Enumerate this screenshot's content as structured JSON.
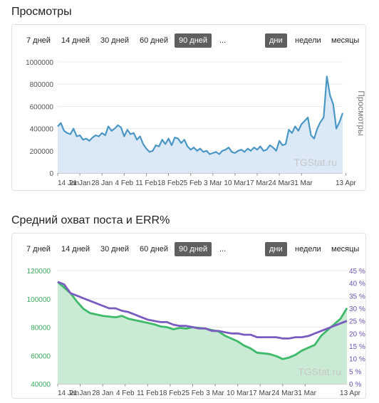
{
  "sections": [
    {
      "title": "Просмотры",
      "ranges": [
        "7 дней",
        "14 дней",
        "30 дней",
        "60 дней",
        "90 дней",
        "..."
      ],
      "active_range": 4,
      "granularity": [
        "дни",
        "недели",
        "месяцы"
      ],
      "active_granularity": 0
    },
    {
      "title": "Средний охват поста и ERR%",
      "ranges": [
        "7 дней",
        "14 дней",
        "30 дней",
        "60 дней",
        "90 дней",
        "..."
      ],
      "active_range": 4,
      "granularity": [
        "дни",
        "недели",
        "месяцы"
      ],
      "active_granularity": 0
    }
  ],
  "colors": {
    "views_line": "#4b97c4",
    "views_fill": "#dbe9f7",
    "reach_line": "#3fb96a",
    "reach_fill": "#c9ead3",
    "err_line": "#7a5cc0",
    "left_axis": "#38a85b",
    "right_axis": "#6b53b5",
    "grid": "#e8e8e8",
    "watermark": "#c8c8c8"
  },
  "chart_data": [
    {
      "type": "area",
      "watermark": "TGStat.ru",
      "ylabel": "Просмотры",
      "ylim": [
        0,
        1000000
      ],
      "yticks": [
        0,
        200000,
        400000,
        600000,
        800000,
        1000000
      ],
      "ytick_labels": [
        "0",
        "200000",
        "400000",
        "600000",
        "800000",
        "1000000"
      ],
      "xlim": [
        0,
        90
      ],
      "xticks": [
        0,
        7,
        14,
        21,
        28,
        35,
        42,
        49,
        56,
        63,
        70,
        77,
        91
      ],
      "xtick_labels": [
        "14 Jan",
        "21 Jan",
        "28 Jan",
        "4 Feb",
        "11 Feb",
        "18 Feb",
        "25 Feb",
        "3 Mar",
        "10 Mar",
        "17 Mar",
        "24 Mar",
        "31 Mar",
        "13 Apr"
      ],
      "grid": true,
      "series": [
        {
          "values": [
            [
              0,
              420000
            ],
            [
              1,
              450000
            ],
            [
              2,
              380000
            ],
            [
              3,
              360000
            ],
            [
              4,
              350000
            ],
            [
              5,
              400000
            ],
            [
              6,
              330000
            ],
            [
              7,
              340000
            ],
            [
              8,
              300000
            ],
            [
              9,
              310000
            ],
            [
              10,
              290000
            ],
            [
              11,
              320000
            ],
            [
              12,
              340000
            ],
            [
              13,
              330000
            ],
            [
              14,
              360000
            ],
            [
              15,
              340000
            ],
            [
              16,
              420000
            ],
            [
              17,
              380000
            ],
            [
              18,
              400000
            ],
            [
              19,
              430000
            ],
            [
              20,
              410000
            ],
            [
              21,
              330000
            ],
            [
              22,
              390000
            ],
            [
              23,
              350000
            ],
            [
              24,
              360000
            ],
            [
              25,
              300000
            ],
            [
              26,
              330000
            ],
            [
              27,
              260000
            ],
            [
              28,
              220000
            ],
            [
              29,
              190000
            ],
            [
              30,
              200000
            ],
            [
              31,
              250000
            ],
            [
              32,
              240000
            ],
            [
              33,
              300000
            ],
            [
              34,
              260000
            ],
            [
              35,
              310000
            ],
            [
              36,
              250000
            ],
            [
              37,
              320000
            ],
            [
              38,
              310000
            ],
            [
              39,
              270000
            ],
            [
              40,
              300000
            ],
            [
              41,
              240000
            ],
            [
              42,
              210000
            ],
            [
              43,
              230000
            ],
            [
              44,
              200000
            ],
            [
              45,
              220000
            ],
            [
              46,
              190000
            ],
            [
              47,
              200000
            ],
            [
              48,
              170000
            ],
            [
              49,
              180000
            ],
            [
              50,
              190000
            ],
            [
              51,
              170000
            ],
            [
              52,
              200000
            ],
            [
              53,
              210000
            ],
            [
              54,
              230000
            ],
            [
              55,
              190000
            ],
            [
              56,
              180000
            ],
            [
              57,
              200000
            ],
            [
              58,
              210000
            ],
            [
              59,
              190000
            ],
            [
              60,
              220000
            ],
            [
              61,
              200000
            ],
            [
              62,
              230000
            ],
            [
              63,
              210000
            ],
            [
              64,
              240000
            ],
            [
              65,
              200000
            ],
            [
              66,
              210000
            ],
            [
              67,
              250000
            ],
            [
              68,
              230000
            ],
            [
              69,
              200000
            ],
            [
              70,
              290000
            ],
            [
              71,
              250000
            ],
            [
              72,
              260000
            ],
            [
              73,
              390000
            ],
            [
              74,
              360000
            ],
            [
              75,
              420000
            ],
            [
              76,
              380000
            ],
            [
              77,
              440000
            ],
            [
              78,
              470000
            ],
            [
              79,
              500000
            ],
            [
              80,
              340000
            ],
            [
              81,
              310000
            ],
            [
              82,
              400000
            ],
            [
              83,
              460000
            ],
            [
              84,
              500000
            ],
            [
              85,
              870000
            ],
            [
              86,
              700000
            ],
            [
              87,
              620000
            ],
            [
              88,
              400000
            ],
            [
              89,
              460000
            ],
            [
              90,
              540000
            ]
          ]
        }
      ]
    },
    {
      "type": "area",
      "watermark": "TGStat.ru",
      "ylim": [
        40000,
        120000
      ],
      "yticks": [
        40000,
        60000,
        80000,
        100000,
        120000
      ],
      "ytick_labels": [
        "40000",
        "60000",
        "80000",
        "100000",
        "120000"
      ],
      "y2lim": [
        0,
        45
      ],
      "y2ticks": [
        0,
        5,
        10,
        15,
        20,
        25,
        30,
        35,
        40,
        45
      ],
      "y2tick_labels": [
        "0 %",
        "5 %",
        "10 %",
        "15 %",
        "20 %",
        "25 %",
        "30 %",
        "35 %",
        "40 %",
        "45 %"
      ],
      "xlim": [
        0,
        90
      ],
      "xticks": [
        0,
        7,
        14,
        21,
        28,
        35,
        42,
        49,
        56,
        63,
        70,
        77,
        91
      ],
      "xtick_labels": [
        "14 Jan",
        "21 Jan",
        "28 Jan",
        "4 Feb",
        "11 Feb",
        "18 Feb",
        "25 Feb",
        "3 Mar",
        "10 Mar",
        "17 Mar",
        "24 Mar",
        "31 Mar",
        "13 Apr"
      ],
      "grid": true,
      "series": [
        {
          "axis": "left",
          "values": [
            [
              0,
              112000
            ],
            [
              2,
              108000
            ],
            [
              4,
              104000
            ],
            [
              6,
              98000
            ],
            [
              8,
              93000
            ],
            [
              10,
              90000
            ],
            [
              12,
              89000
            ],
            [
              14,
              88000
            ],
            [
              16,
              87500
            ],
            [
              18,
              87000
            ],
            [
              20,
              88000
            ],
            [
              22,
              86000
            ],
            [
              24,
              85000
            ],
            [
              26,
              84000
            ],
            [
              28,
              83000
            ],
            [
              30,
              82000
            ],
            [
              32,
              80500
            ],
            [
              34,
              80000
            ],
            [
              36,
              78500
            ],
            [
              38,
              79500
            ],
            [
              40,
              79000
            ],
            [
              42,
              80000
            ],
            [
              44,
              79500
            ],
            [
              46,
              79000
            ],
            [
              48,
              78000
            ],
            [
              50,
              77000
            ],
            [
              52,
              74000
            ],
            [
              54,
              72000
            ],
            [
              56,
              70000
            ],
            [
              58,
              67000
            ],
            [
              60,
              65000
            ],
            [
              62,
              62000
            ],
            [
              64,
              61500
            ],
            [
              66,
              61000
            ],
            [
              68,
              59500
            ],
            [
              70,
              57500
            ],
            [
              72,
              58500
            ],
            [
              74,
              60500
            ],
            [
              76,
              63500
            ],
            [
              78,
              65500
            ],
            [
              80,
              67500
            ],
            [
              82,
              74000
            ],
            [
              84,
              78000
            ],
            [
              86,
              82000
            ],
            [
              88,
              86000
            ],
            [
              90,
              93500
            ]
          ]
        },
        {
          "axis": "right",
          "values": [
            [
              0,
              40.5
            ],
            [
              2,
              39.5
            ],
            [
              4,
              36
            ],
            [
              6,
              35
            ],
            [
              8,
              34
            ],
            [
              10,
              33
            ],
            [
              12,
              32
            ],
            [
              14,
              31
            ],
            [
              16,
              30
            ],
            [
              18,
              30
            ],
            [
              20,
              29
            ],
            [
              22,
              28.5
            ],
            [
              24,
              27.5
            ],
            [
              26,
              26.5
            ],
            [
              28,
              25.5
            ],
            [
              30,
              25
            ],
            [
              32,
              24.5
            ],
            [
              34,
              24.5
            ],
            [
              36,
              23.5
            ],
            [
              38,
              23
            ],
            [
              40,
              23
            ],
            [
              42,
              22.5
            ],
            [
              44,
              22
            ],
            [
              46,
              22
            ],
            [
              48,
              21
            ],
            [
              50,
              21
            ],
            [
              52,
              20.5
            ],
            [
              54,
              20
            ],
            [
              56,
              20
            ],
            [
              58,
              19.5
            ],
            [
              60,
              19.5
            ],
            [
              62,
              18.5
            ],
            [
              64,
              18.5
            ],
            [
              66,
              18.5
            ],
            [
              68,
              18.5
            ],
            [
              70,
              18
            ],
            [
              72,
              18
            ],
            [
              74,
              18.5
            ],
            [
              76,
              18.5
            ],
            [
              78,
              19
            ],
            [
              80,
              20
            ],
            [
              82,
              21
            ],
            [
              84,
              22
            ],
            [
              86,
              23
            ],
            [
              88,
              24
            ],
            [
              90,
              25
            ]
          ]
        }
      ]
    }
  ]
}
